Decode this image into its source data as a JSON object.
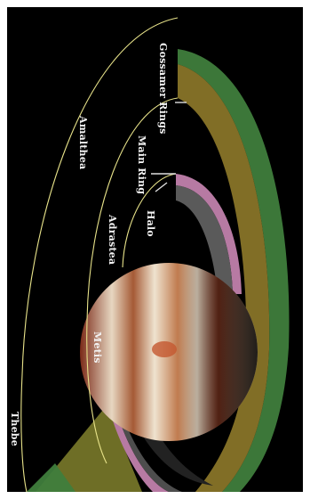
{
  "labels": {
    "gossamer_rings": "Gossamer Rings",
    "main_ring": "Main Ring",
    "halo": "Halo",
    "adrastea": "Adrastea",
    "metis": "Metis",
    "amalthea": "Amalthea",
    "thebe": "Thebe"
  },
  "colors": {
    "space": "#000000",
    "gossamer_outer": "#3f7d3c",
    "gossamer_inner": "#8f7a2a",
    "main_ring": "#b77aa3",
    "halo": "#5a5a5a",
    "orbit_line": "#e8e38a"
  }
}
